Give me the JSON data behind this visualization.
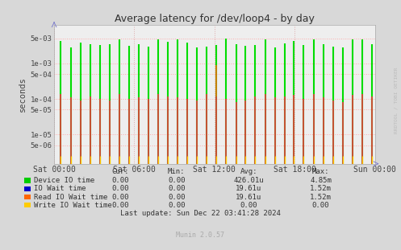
{
  "title": "Average latency for /dev/loop4 - by day",
  "ylabel": "seconds",
  "background_color": "#d8d8d8",
  "plot_bg_color": "#eeeeee",
  "grid_color_h": "#ffaaaa",
  "grid_color_v": "#ddaaaa",
  "ylim_min": 1.5e-06,
  "ylim_max": 0.012,
  "yticks": [
    5e-06,
    1e-05,
    5e-05,
    0.0001,
    0.0005,
    0.001,
    0.005
  ],
  "ytick_labels": [
    "5e-06",
    "1e-05",
    "5e-05",
    "1e-04",
    "5e-04",
    "1e-03",
    "5e-03"
  ],
  "xtick_labels": [
    "Sat 00:00",
    "Sat 06:00",
    "Sat 12:00",
    "Sat 18:00",
    "Sun 00:00"
  ],
  "xtick_positions": [
    0.0,
    0.25,
    0.5,
    0.75,
    1.0
  ],
  "series_colors": [
    "#00dd00",
    "#0000ee",
    "#ff6600",
    "#ffcc00"
  ],
  "series_names": [
    "Device IO time",
    "IO Wait time",
    "Read IO Wait time",
    "Write IO Wait time"
  ],
  "legend_square_colors": [
    "#00cc00",
    "#0000cc",
    "#ff6600",
    "#ffcc00"
  ],
  "spike_x": [
    0.02,
    0.052,
    0.082,
    0.113,
    0.143,
    0.173,
    0.204,
    0.234,
    0.264,
    0.294,
    0.325,
    0.355,
    0.385,
    0.415,
    0.445,
    0.476,
    0.506,
    0.536,
    0.567,
    0.597,
    0.627,
    0.658,
    0.688,
    0.718,
    0.748,
    0.778,
    0.809,
    0.839,
    0.869,
    0.899,
    0.93,
    0.96,
    0.99
  ],
  "green_spikes": [
    0.0042,
    0.0028,
    0.0038,
    0.0035,
    0.0033,
    0.0034,
    0.0047,
    0.0031,
    0.0035,
    0.003,
    0.0048,
    0.004,
    0.0048,
    0.0038,
    0.0028,
    0.003,
    0.0032,
    0.0049,
    0.0034,
    0.0031,
    0.0032,
    0.0048,
    0.0028,
    0.0037,
    0.0042,
    0.0032,
    0.0048,
    0.0034,
    0.003,
    0.0028,
    0.0048,
    0.0048,
    0.0034
  ],
  "blue_spikes": [
    0.00014,
    0.00011,
    9e-05,
    0.00012,
    0.0001,
    9e-05,
    0.00014,
    0.0001,
    0.00011,
    0.0001,
    0.00014,
    0.00012,
    0.00011,
    0.0001,
    9e-05,
    0.00014,
    0.00012,
    0.0001,
    8e-05,
    9e-05,
    0.00012,
    0.00014,
    0.00011,
    0.00012,
    0.00013,
    0.0001,
    0.00014,
    0.00011,
    9e-05,
    8e-05,
    0.00013,
    0.00014,
    0.00012
  ],
  "orange_spikes": [
    0.00014,
    0.00011,
    9e-05,
    0.00012,
    0.0001,
    9e-05,
    0.00014,
    0.0001,
    0.00011,
    0.0001,
    0.00014,
    0.00012,
    0.00011,
    0.0001,
    9e-05,
    0.00014,
    0.0009,
    0.0001,
    8e-05,
    9e-05,
    0.00012,
    0.00014,
    0.00011,
    0.00012,
    0.00013,
    0.0001,
    0.00014,
    0.00011,
    9e-05,
    8e-05,
    0.00013,
    0.00014,
    0.00012
  ],
  "yellow_spikes": [
    2.5e-06,
    2.5e-06,
    2.5e-06,
    2.5e-06,
    2.5e-06,
    2.5e-06,
    2.5e-06,
    2.5e-06,
    2.5e-06,
    2.5e-06,
    2.5e-06,
    2.5e-06,
    2.5e-06,
    2.5e-06,
    2.5e-06,
    2.5e-06,
    2.5e-06,
    2.5e-06,
    2.5e-06,
    2.5e-06,
    2.5e-06,
    2.5e-06,
    2.5e-06,
    2.5e-06,
    2.5e-06,
    2.5e-06,
    2.5e-06,
    2.5e-06,
    2.5e-06,
    2.5e-06,
    2.5e-06,
    2.5e-06,
    2.5e-06
  ],
  "legend_table_header": [
    "Cur:",
    "Min:",
    "Avg:",
    "Max:"
  ],
  "legend_table_rows": [
    [
      "0.00",
      "0.00",
      "426.01u",
      "4.85m"
    ],
    [
      "0.00",
      "0.00",
      "19.61u",
      "1.52m"
    ],
    [
      "0.00",
      "0.00",
      "19.61u",
      "1.52m"
    ],
    [
      "0.00",
      "0.00",
      "0.00",
      "0.00"
    ]
  ],
  "last_update": "Last update: Sun Dec 22 03:41:28 2024",
  "watermark": "Munin 2.0.57",
  "rrdtool_label": "RRDTOOL / TOBI OETIKER"
}
